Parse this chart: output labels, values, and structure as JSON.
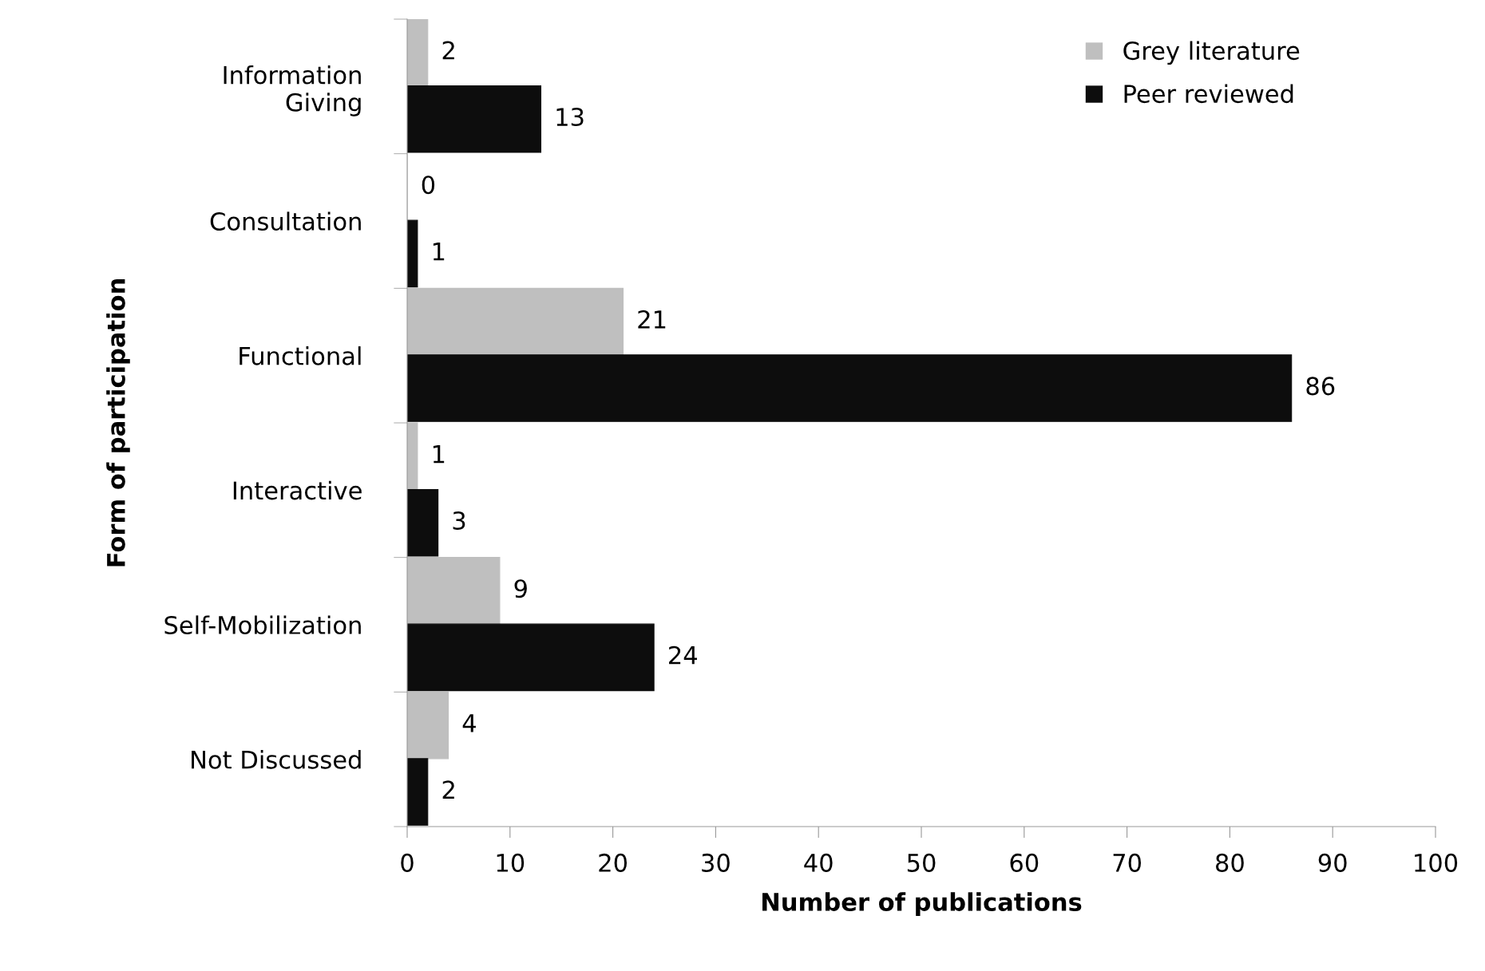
{
  "chart_data": {
    "type": "bar",
    "orientation": "horizontal",
    "xlabel": "Number of publications",
    "ylabel": "Form of participation",
    "categories": [
      "Information\nGiving",
      "Consultation",
      "Functional",
      "Interactive",
      "Self-Mobilization",
      "Not Discussed"
    ],
    "series": [
      {
        "name": "Grey literature",
        "color": "#bfbfbf",
        "values": [
          2,
          0,
          21,
          1,
          9,
          4
        ]
      },
      {
        "name": "Peer reviewed",
        "color": "#0d0d0d",
        "values": [
          13,
          1,
          86,
          3,
          24,
          2
        ]
      }
    ],
    "xlim": [
      0,
      100
    ],
    "xticks": [
      0,
      10,
      20,
      30,
      40,
      50,
      60,
      70,
      80,
      90,
      100
    ],
    "data_labels": true,
    "legend": "top right",
    "grid": false
  }
}
